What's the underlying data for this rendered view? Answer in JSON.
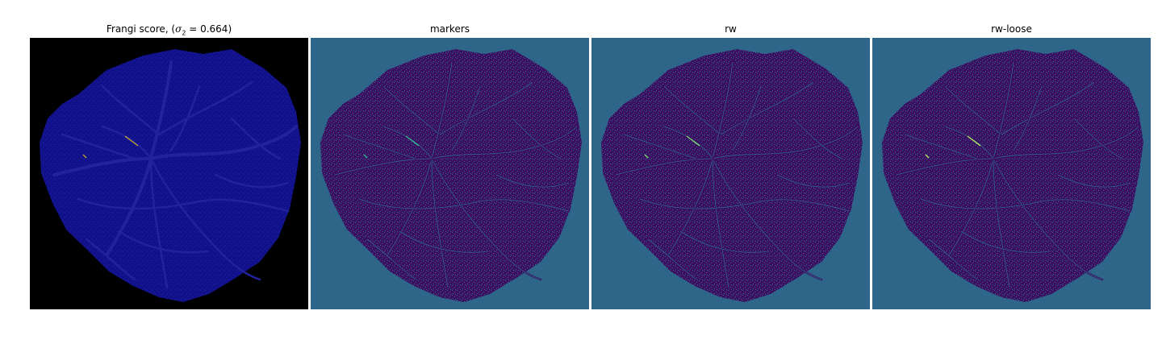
{
  "figure": {
    "panels": [
      {
        "title": "Frangi score, (",
        "title_math_symbol": "σ",
        "title_math_sub": "2",
        "title_math_rest": " = 0.664)",
        "background": "#000000",
        "disc_color": "#10108a",
        "vessel_color": "#22229e",
        "highlight_color": "#c0a030"
      },
      {
        "title": "markers",
        "background": "#2e668a",
        "disc_color": "#3d0f63",
        "vessel_color": "#2b6b8c",
        "highlight_color": "#2fb38c"
      },
      {
        "title": "rw",
        "background": "#2e668a",
        "disc_color": "#3d0f63",
        "vessel_color": "#2b6b8c",
        "highlight_color": "#7fd96a"
      },
      {
        "title": "rw-loose",
        "background": "#2e668a",
        "disc_color": "#3d0f63",
        "vessel_color": "#2b6b8c",
        "highlight_color": "#b6e85a"
      }
    ]
  }
}
